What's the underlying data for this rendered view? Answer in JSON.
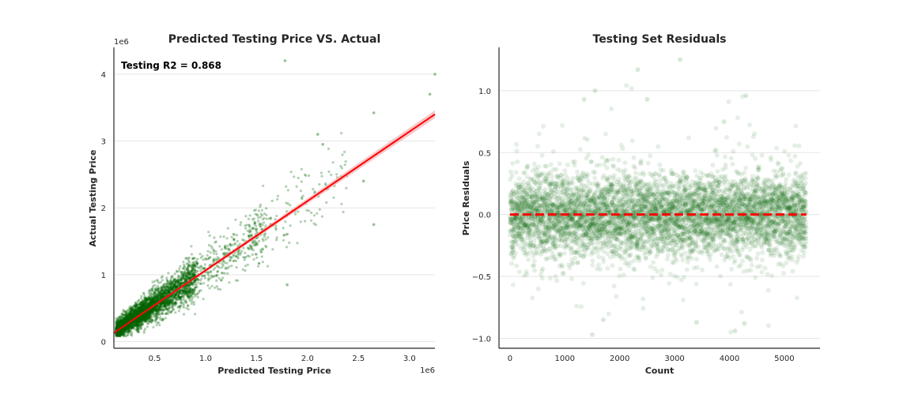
{
  "colors": {
    "points": "#006400",
    "fit_line": "#ff0000",
    "ci_band": "#f4a3a8",
    "grid": "#e5e5e5",
    "axis": "#262626"
  },
  "chart_data": [
    {
      "type": "scatter",
      "title": "Predicted Testing Price VS. Actual",
      "xlabel": "Predicted Testing Price",
      "ylabel": "Actual Testing Price",
      "x_offset_text": "1e6",
      "y_offset_text": "1e6",
      "annotation": "Testing R2 = 0.868",
      "xlim": [
        0.1,
        3.25
      ],
      "ylim": [
        -0.1,
        4.4
      ],
      "x_ticks": [
        0.5,
        1.0,
        1.5,
        2.0,
        2.5,
        3.0
      ],
      "x_tick_labels": [
        "0.5",
        "1.0",
        "1.5",
        "2.0",
        "2.5",
        "3.0"
      ],
      "y_ticks": [
        0,
        1,
        2,
        3,
        4
      ],
      "y_tick_labels": [
        "0",
        "1",
        "2",
        "3",
        "4"
      ],
      "grid": "horizontal",
      "regression_line": {
        "x": [
          0.1,
          3.25
        ],
        "y": [
          0.13,
          3.4
        ],
        "color": "red"
      },
      "notable_points": [
        {
          "x": 1.78,
          "y": 4.2
        },
        {
          "x": 3.25,
          "y": 4.0
        },
        {
          "x": 3.2,
          "y": 3.7
        },
        {
          "x": 2.65,
          "y": 3.42
        },
        {
          "x": 2.1,
          "y": 3.1
        },
        {
          "x": 2.15,
          "y": 2.95
        },
        {
          "x": 2.55,
          "y": 2.4
        },
        {
          "x": 2.65,
          "y": 1.75
        },
        {
          "x": 1.8,
          "y": 0.85
        }
      ],
      "point_alpha": 0.3
    },
    {
      "type": "scatter",
      "title": "Testing Set Residuals",
      "xlabel": "Count",
      "ylabel": "Price Residuals",
      "xlim": [
        -200,
        5650
      ],
      "ylim": [
        -1.08,
        1.35
      ],
      "x_ticks": [
        0,
        1000,
        2000,
        3000,
        4000,
        5000
      ],
      "x_tick_labels": [
        "0",
        "1000",
        "2000",
        "3000",
        "4000",
        "5000"
      ],
      "y_ticks": [
        -1.0,
        -0.5,
        0.0,
        0.5,
        1.0
      ],
      "y_tick_labels": [
        "−1.0",
        "−0.5",
        "0.0",
        "0.5",
        "1.0"
      ],
      "grid": "horizontal",
      "reference_line": {
        "y": 0.0,
        "style": "dashed",
        "color": "red"
      },
      "n_points": 5400,
      "notable_points": [
        {
          "x": 3100,
          "y": 1.25
        },
        {
          "x": 2330,
          "y": 1.17
        },
        {
          "x": 1550,
          "y": 1.0
        },
        {
          "x": 4300,
          "y": 0.96
        },
        {
          "x": 1350,
          "y": 0.93
        },
        {
          "x": 2500,
          "y": 0.93
        },
        {
          "x": 3900,
          "y": 0.75
        },
        {
          "x": 1500,
          "y": -0.97
        },
        {
          "x": 4100,
          "y": -0.94
        },
        {
          "x": 3400,
          "y": -0.87
        },
        {
          "x": 4270,
          "y": -0.88
        },
        {
          "x": 1700,
          "y": -0.85
        }
      ],
      "point_alpha": 0.1
    }
  ]
}
